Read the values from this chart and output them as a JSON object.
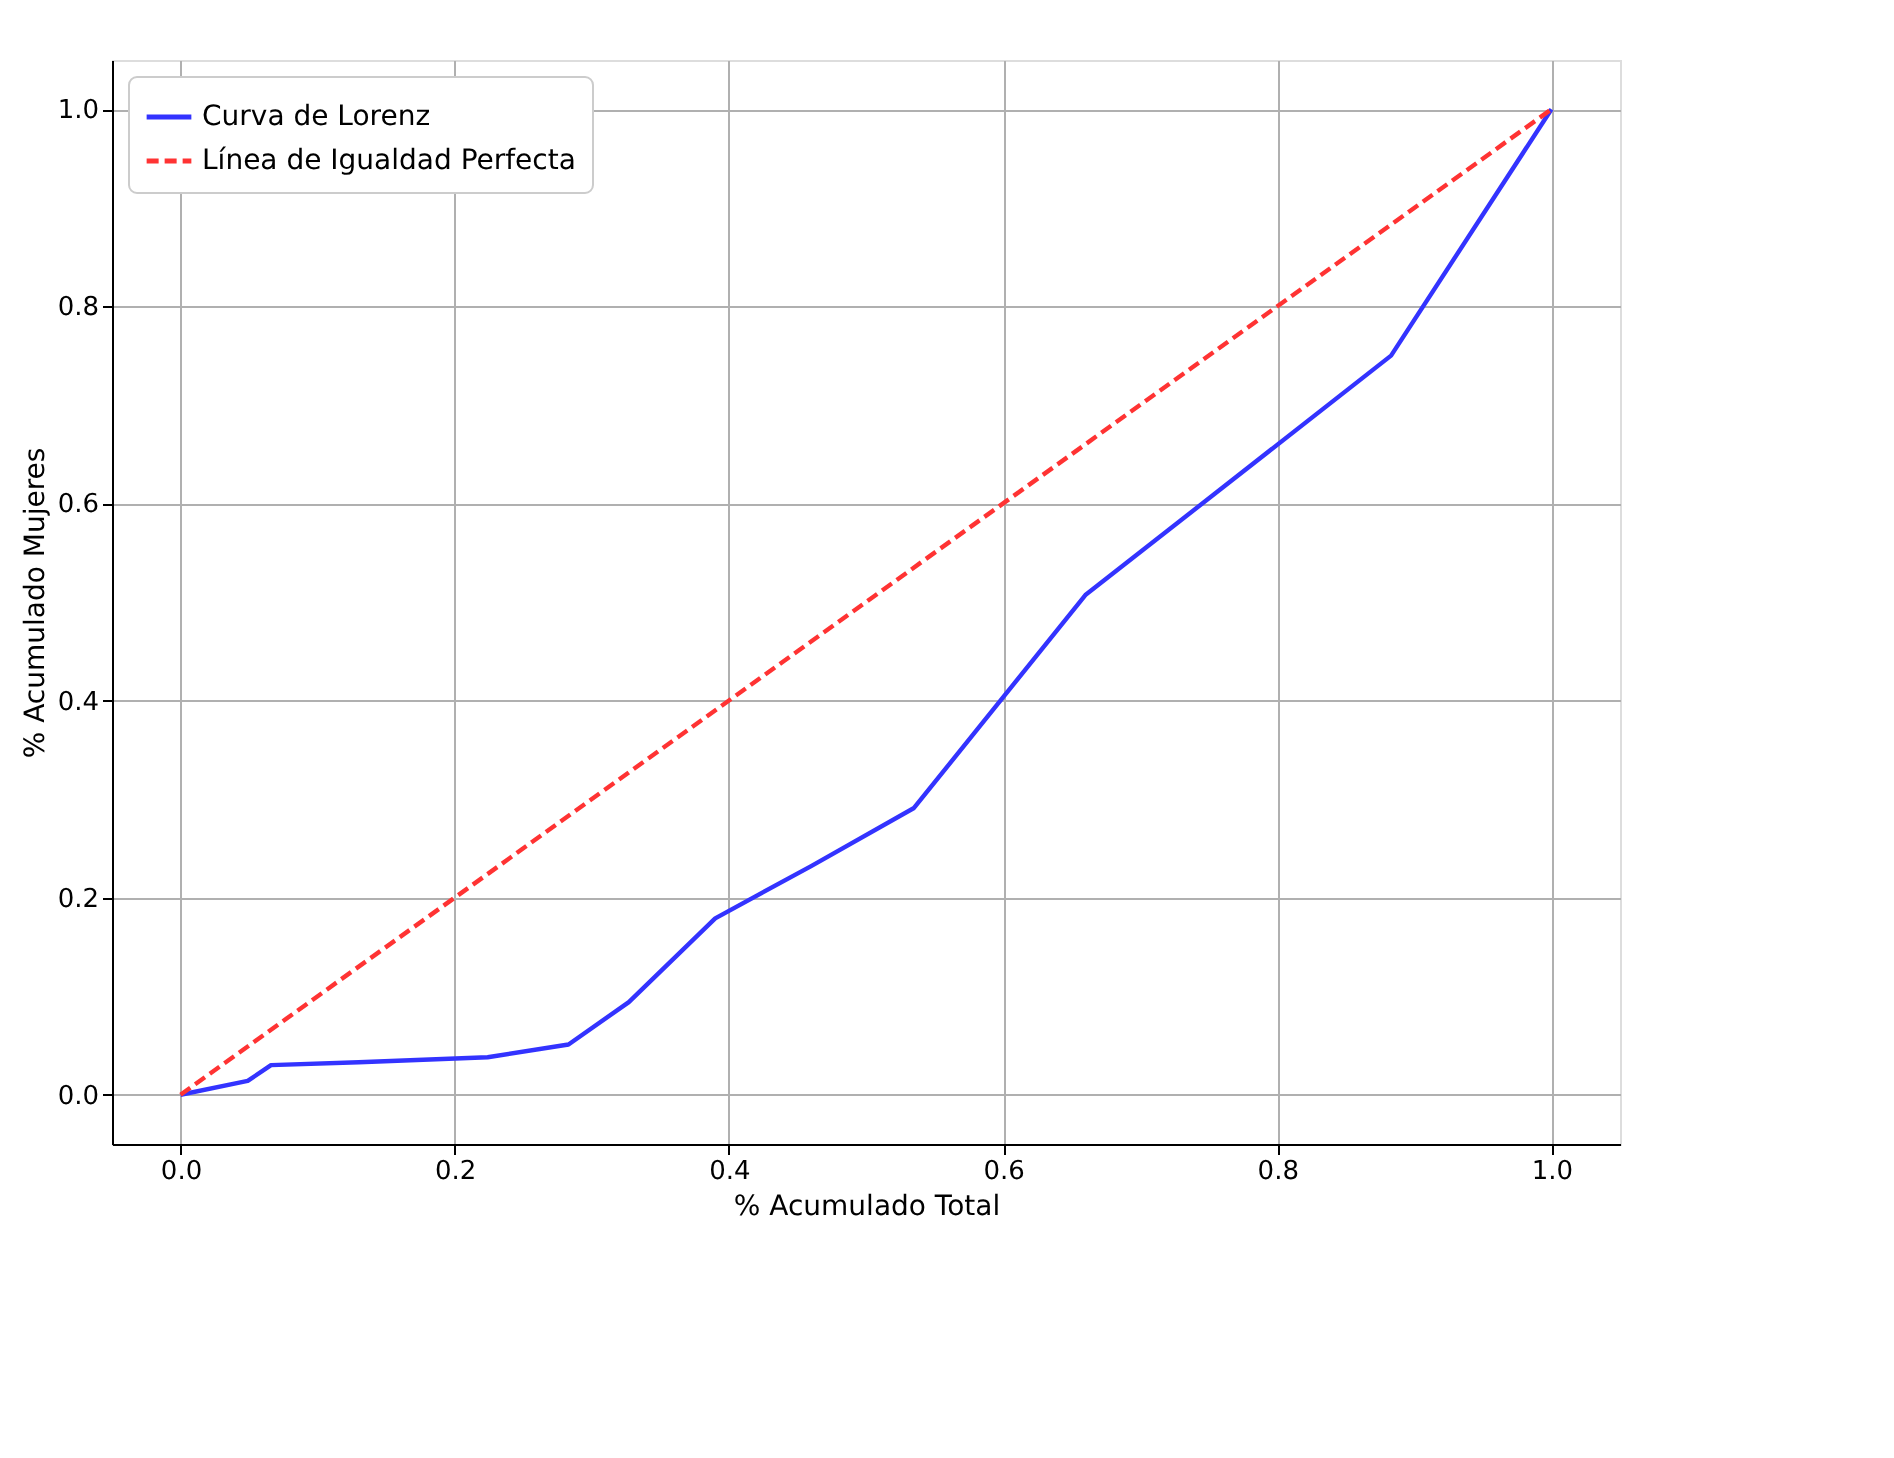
{
  "chart_data": {
    "type": "line",
    "xlabel": "% Acumulado Total",
    "ylabel": "% Acumulado Mujeres",
    "xlim": [
      -0.05,
      1.05
    ],
    "ylim": [
      -0.05,
      1.05
    ],
    "xticks": [
      {
        "value": 0,
        "label": "0.0"
      },
      {
        "value": 0.2,
        "label": "0.2"
      },
      {
        "value": 0.4,
        "label": "0.4"
      },
      {
        "value": 0.6,
        "label": "0.6"
      },
      {
        "value": 0.8,
        "label": "0.8"
      },
      {
        "value": 1,
        "label": "1.0"
      }
    ],
    "yticks": [
      {
        "value": 0,
        "label": "0.0"
      },
      {
        "value": 0.2,
        "label": "0.2"
      },
      {
        "value": 0.4,
        "label": "0.4"
      },
      {
        "value": 0.6,
        "label": "0.6"
      },
      {
        "value": 0.8,
        "label": "0.8"
      },
      {
        "value": 1,
        "label": "1.0"
      }
    ],
    "grid": true,
    "legend": "top left",
    "series": [
      {
        "name": "Curva de Lorenz",
        "color": "#3333ff",
        "line_style": "solid",
        "x": [
          0,
          0.049,
          0.066,
          0.13,
          0.224,
          0.283,
          0.327,
          0.39,
          0.46,
          0.535,
          0.66,
          0.883,
          1.0
        ],
        "values": [
          0,
          0.014,
          0.03,
          0.033,
          0.038,
          0.051,
          0.094,
          0.179,
          0.232,
          0.291,
          0.507,
          0.75,
          1.0
        ]
      },
      {
        "name": "Línea de Igualdad Perfecta",
        "color": "#ff3333",
        "line_style": "dashed",
        "x": [
          0,
          1
        ],
        "values": [
          0,
          1
        ]
      }
    ]
  }
}
